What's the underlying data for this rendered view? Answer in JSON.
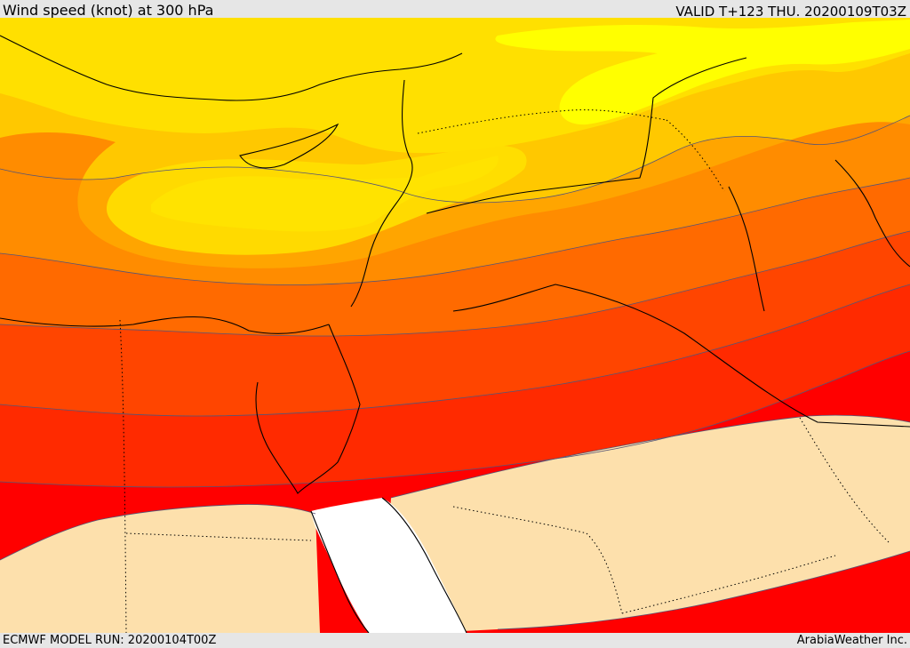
{
  "header": {
    "title": "Wind speed (knot) at 300 hPa",
    "valid": "VALID T+123 THU. 20200109T03Z"
  },
  "footer": {
    "model_run": "ECMWF MODEL RUN: 20200104T00Z",
    "credit": "ArabiaWeather Inc."
  },
  "map": {
    "field": "wind speed at 300 hPa",
    "colors": {
      "sea_white": "#ffffff",
      "low_wind": "#fde0ac",
      "band_red": "#ff0000",
      "band_red_orange": "#ff2a00",
      "band_orange_red": "#ff4500",
      "band_orange": "#ff6a00",
      "band_light_orange": "#ff8c00",
      "band_amber": "#ffa500",
      "band_gold": "#ffc800",
      "band_yellow_gold": "#ffe000",
      "band_yellow": "#ffff00",
      "contour_line": "#555577",
      "coastline": "#000000"
    }
  }
}
